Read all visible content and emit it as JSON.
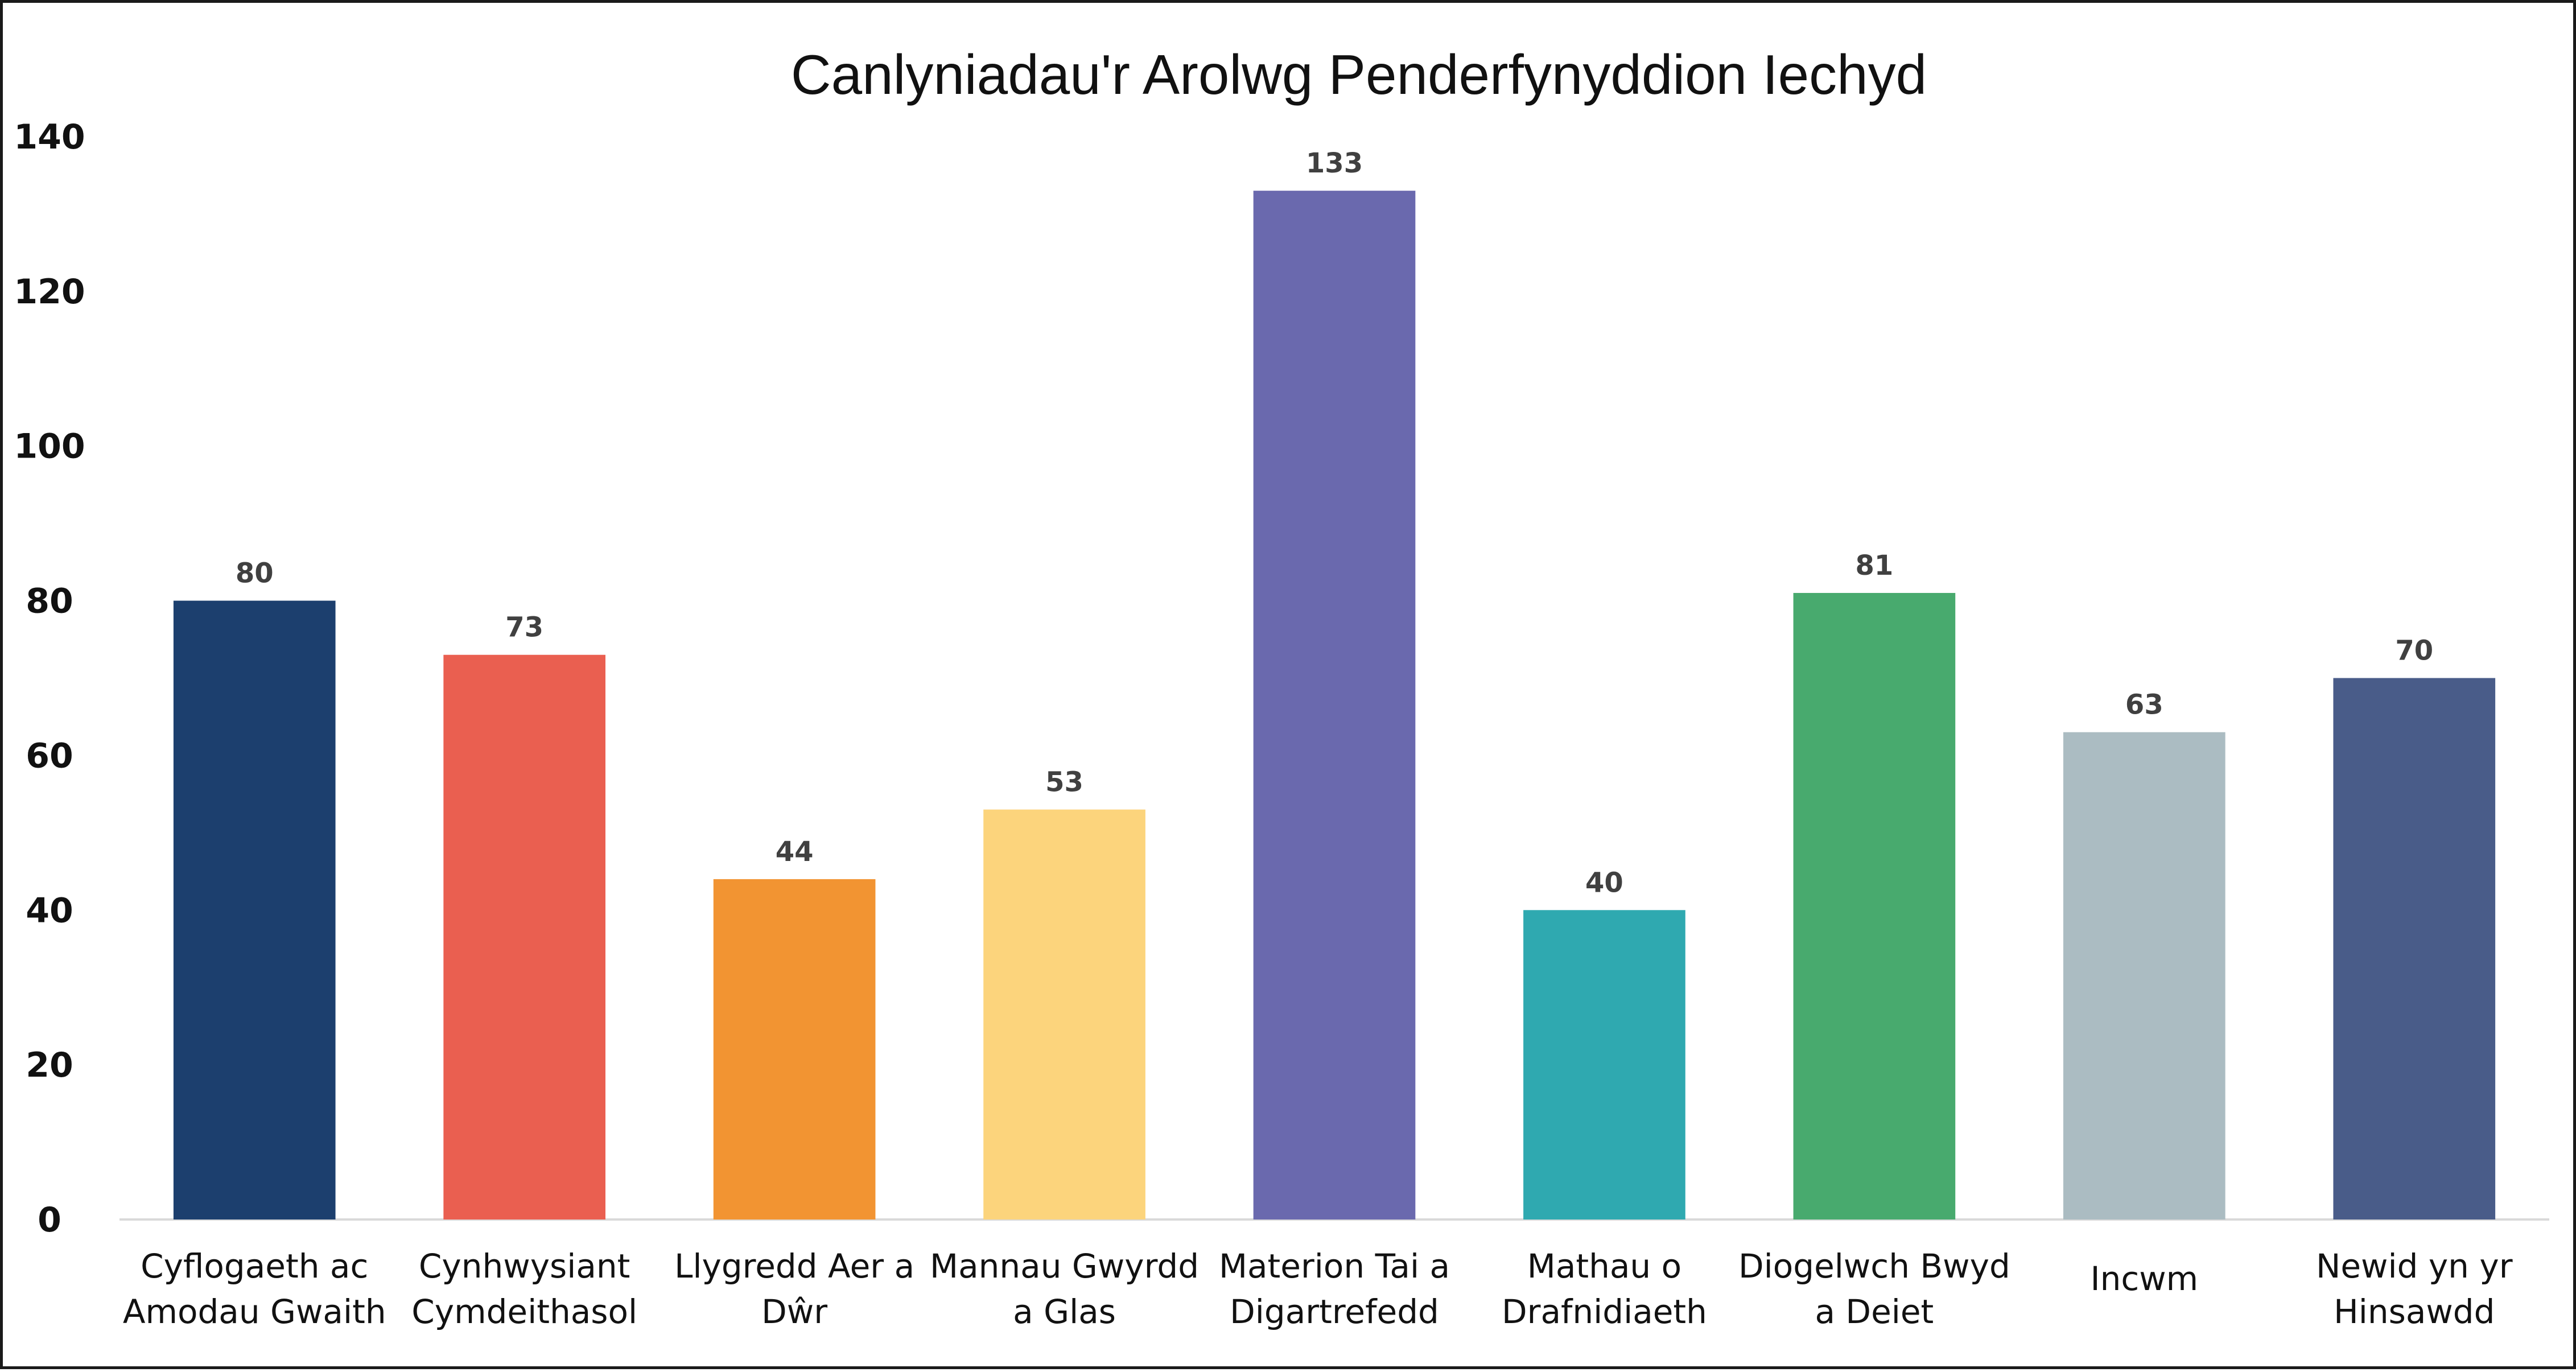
{
  "chart_data": {
    "type": "bar",
    "title": "Canlyniadau'r Arolwg Penderfynyddion Iechyd",
    "xlabel": "",
    "ylabel": "",
    "ylim": [
      0,
      140
    ],
    "yticks": [
      0,
      20,
      40,
      60,
      80,
      100,
      120,
      140
    ],
    "grid": false,
    "legend": "none",
    "categories": [
      [
        "Cyflogaeth ac",
        "Amodau Gwaith"
      ],
      [
        "Cynhwysiant",
        "Cymdeithasol"
      ],
      [
        "Llygredd Aer a",
        "Dŵr"
      ],
      [
        "Mannau Gwyrdd",
        "a Glas"
      ],
      [
        "Materion Tai a",
        "Digartrefedd"
      ],
      [
        "Mathau o",
        "Drafnidiaeth"
      ],
      [
        "Diogelwch Bwyd",
        "a Deiet"
      ],
      [
        "Incwm"
      ],
      [
        "Newid yn yr",
        "Hinsawdd"
      ]
    ],
    "values": [
      80,
      73,
      44,
      53,
      133,
      40,
      81,
      63,
      70
    ],
    "colors": [
      "#1c3f6e",
      "#ea5f50",
      "#f29432",
      "#fcd47c",
      "#6a69ae",
      "#2fa9b0",
      "#48aa6e",
      "#abbcc2",
      "#495c89"
    ],
    "data_labels": [
      "80",
      "73",
      "44",
      "53",
      "133",
      "40",
      "81",
      "63",
      "70"
    ]
  }
}
